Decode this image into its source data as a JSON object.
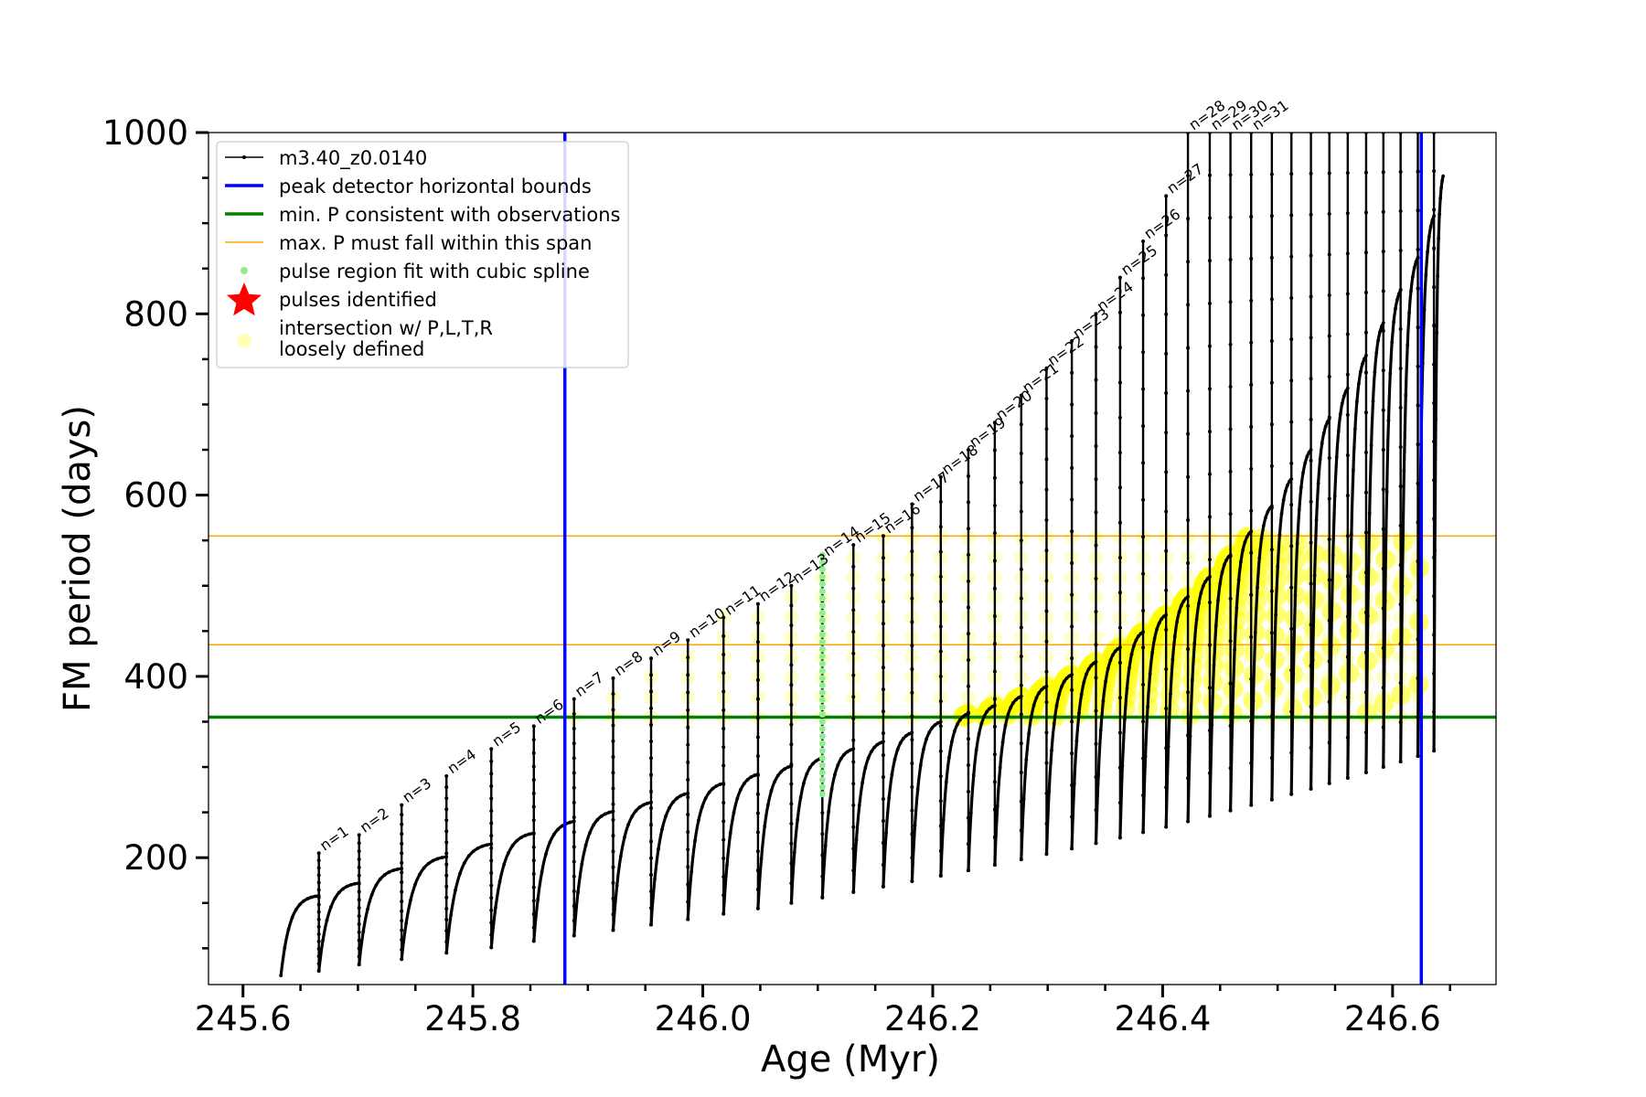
{
  "chart_data": {
    "type": "line",
    "title": "",
    "xlabel": "Age (Myr)",
    "ylabel": "FM period (days)",
    "xlim": [
      245.57,
      246.69
    ],
    "ylim": [
      60,
      1000
    ],
    "xticks": [
      245.6,
      245.8,
      246.0,
      246.2,
      246.4,
      246.6
    ],
    "xtick_labels": [
      "245.6",
      "245.8",
      "246.0",
      "246.2",
      "246.4",
      "246.6"
    ],
    "yticks": [
      200,
      400,
      600,
      800,
      1000
    ],
    "ytick_labels": [
      "200",
      "400",
      "600",
      "800",
      "1000"
    ],
    "grid": false,
    "legend_position": "upper-left",
    "legend": [
      {
        "label": "m3.40_z0.0140",
        "kind": "line-marker",
        "color": "#000000"
      },
      {
        "label": "peak detector horizontal bounds",
        "kind": "line",
        "color": "#0000ff"
      },
      {
        "label": "min. P consistent with observations",
        "kind": "line",
        "color": "#008000"
      },
      {
        "label": "max. P must fall within this span",
        "kind": "thin-line",
        "color": "#ffa500"
      },
      {
        "label": "pulse region fit with cubic spline",
        "kind": "dot",
        "color": "#90ee90"
      },
      {
        "label": "pulses identified",
        "kind": "star",
        "color": "#ff0000"
      },
      {
        "label": "intersection w/ P,L,T,R",
        "label2": "loosely defined",
        "kind": "circle",
        "color": "#ffff99"
      }
    ],
    "reference_lines": {
      "vertical_blue": [
        245.88,
        246.625
      ],
      "horizontal_green": 355,
      "horizontal_orange": [
        435,
        555
      ]
    },
    "series": [
      {
        "name": "m3.40_z0.0140",
        "color": "#000000",
        "pulse_x": [
          245.633,
          245.666,
          245.701,
          245.738,
          245.777,
          245.816,
          245.853,
          245.888,
          245.922,
          245.955,
          245.987,
          246.018,
          246.048,
          246.077,
          246.104,
          246.131,
          246.157,
          246.182,
          246.207,
          246.231,
          246.254,
          246.277,
          246.299,
          246.321,
          246.342,
          246.363,
          246.383,
          246.403,
          246.422,
          246.441,
          246.459,
          246.477,
          246.495,
          246.512,
          246.529,
          246.545,
          246.561,
          246.577,
          246.592,
          246.607,
          246.622,
          246.636
        ],
        "pulse_low": [
          70,
          75,
          82,
          88,
          95,
          101,
          108,
          114,
          120,
          126,
          132,
          138,
          144,
          150,
          156,
          162,
          168,
          174,
          180,
          186,
          192,
          198,
          204,
          210,
          216,
          222,
          228,
          234,
          240,
          246,
          252,
          258,
          264,
          270,
          276,
          282,
          288,
          294,
          300,
          306,
          312,
          318
        ],
        "pulse_high": [
          158,
          172,
          188,
          201,
          215,
          227,
          240,
          251,
          261,
          271,
          282,
          292,
          301,
          310,
          320,
          328,
          338,
          350,
          359,
          368,
          378,
          389,
          402,
          416,
          432,
          449,
          468,
          488,
          510,
          534,
          560,
          588,
          618,
          650,
          684,
          718,
          754,
          790,
          826,
          862,
          908,
          952
        ],
        "spike_top": [
          185,
          205,
          225,
          258,
          290,
          320,
          345,
          375,
          398,
          420,
          440,
          465,
          480,
          500,
          530,
          545,
          555,
          590,
          620,
          650,
          680,
          710,
          740,
          770,
          800,
          840,
          880,
          930,
          1000,
          1000,
          1000,
          1000,
          1000,
          1000,
          1000,
          1000,
          1000,
          1000,
          1000,
          1000,
          1000,
          1000
        ]
      }
    ],
    "annotations": [
      "n=1",
      "n=2",
      "n=3",
      "n=4",
      "n=5",
      "n=6",
      "n=7",
      "n=8",
      "n=9",
      "n=10",
      "n=11",
      "n=12",
      "n=13",
      "n=14",
      "n=15",
      "n=16",
      "n=17",
      "n=18",
      "n=19",
      "n=20",
      "n=21",
      "n=22",
      "n=23",
      "n=24",
      "n=25",
      "n=26",
      "n=27",
      "n=28",
      "n=29",
      "n=30",
      "n=31"
    ],
    "spline_region": {
      "x": 246.104,
      "y": [
        270,
        540
      ]
    }
  }
}
